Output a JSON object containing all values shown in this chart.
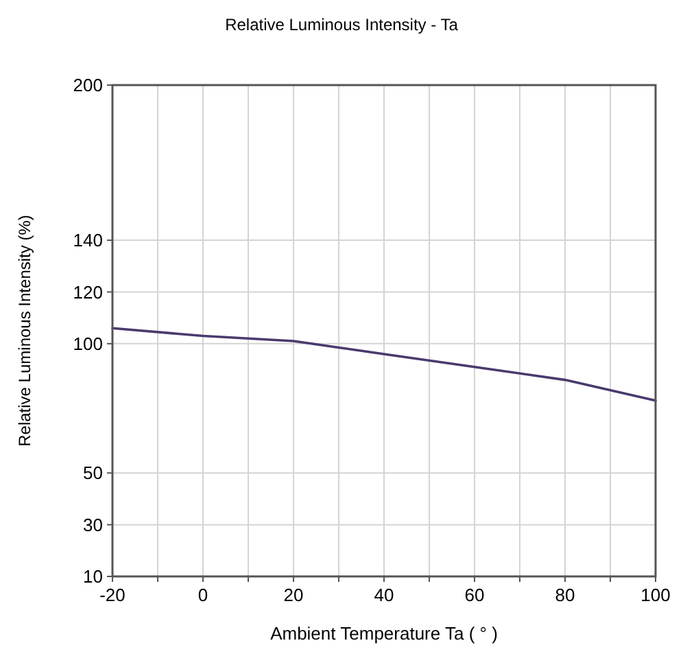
{
  "chart_data": {
    "type": "line",
    "title": "Relative Luminous Intensity - Ta",
    "xlabel": "Ambient Temperature Ta ( ° )",
    "ylabel": "Relative Luminous Intensity (%)",
    "x": [
      -20,
      0,
      20,
      40,
      60,
      80,
      100
    ],
    "series": [
      {
        "color": "#4a3a6e",
        "values": [
          106,
          103,
          101,
          96,
          91,
          86,
          78
        ]
      }
    ],
    "xlim": [
      -20,
      100
    ],
    "xticks": [
      -20,
      {
        "value": -10,
        "label": null
      },
      0,
      {
        "value": 10,
        "label": null
      },
      20,
      {
        "value": 30,
        "label": null
      },
      40,
      {
        "value": 50,
        "label": null
      },
      60,
      {
        "value": 70,
        "label": null
      },
      80,
      {
        "value": 90,
        "label": null
      },
      100
    ],
    "ylim": [
      10,
      200
    ],
    "yticks": [
      10,
      30,
      50,
      100,
      120,
      140,
      200
    ],
    "grid": true,
    "marker": "none",
    "line_style": "solid"
  }
}
